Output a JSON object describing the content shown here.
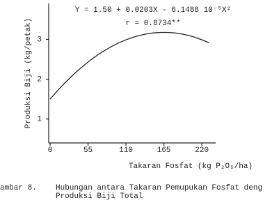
{
  "chart_data": {
    "type": "line",
    "annotations": [
      "Y = 1.50 + 0.0203X - 6.1488 10⁻⁵X²",
      "r = 0.8734**"
    ],
    "xlabel": "Takaran Fosfat (kg P₂O₅/ha)",
    "ylabel": "Produksi Biji (kg/petak)",
    "caption": [
      "ambar 8.",
      "Hubungan antara Takaran Pemupukan Fosfat deng",
      "Produksi Biji Total"
    ],
    "x": [
      0,
      10,
      20,
      30,
      40,
      50,
      60,
      70,
      80,
      90,
      100,
      110,
      120,
      130,
      140,
      150,
      160,
      170,
      180,
      190,
      200,
      210,
      220,
      230
    ],
    "values": [
      1.5,
      1.697,
      1.881,
      2.054,
      2.214,
      2.361,
      2.497,
      2.62,
      2.73,
      2.829,
      2.915,
      2.989,
      3.051,
      3.1,
      3.137,
      3.162,
      3.174,
      3.174,
      3.162,
      3.137,
      3.101,
      3.051,
      2.99,
      2.916
    ],
    "color": "#222222",
    "xlim": [
      0,
      240
    ],
    "xticks": [
      0,
      55,
      110,
      165,
      220
    ],
    "ylim": [
      0.4,
      3.9
    ],
    "yticks": [
      1,
      2,
      3
    ]
  }
}
